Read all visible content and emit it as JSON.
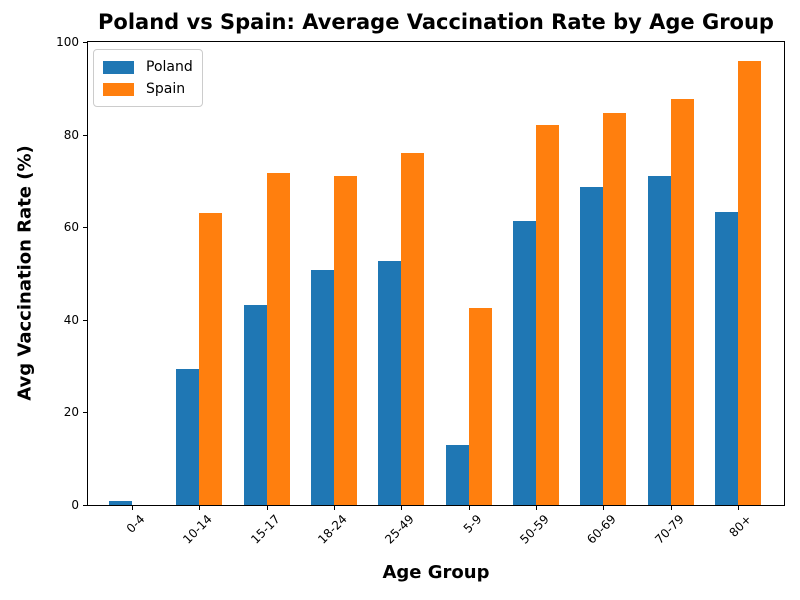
{
  "chart_data": {
    "type": "bar",
    "title": "Poland vs Spain: Average Vaccination Rate by Age Group",
    "xlabel": "Age Group",
    "ylabel": "Avg Vaccination Rate (%)",
    "categories": [
      "0-4",
      "10-14",
      "15-17",
      "18-24",
      "25-49",
      "5-9",
      "50-59",
      "60-69",
      "70-79",
      "80+"
    ],
    "series": [
      {
        "name": "Poland",
        "color": "#1f77b4",
        "values": [
          0.8,
          29.4,
          43.2,
          50.8,
          52.7,
          13.0,
          61.4,
          68.6,
          71.0,
          63.2
        ]
      },
      {
        "name": "Spain",
        "color": "#ff7f0e",
        "values": [
          0.0,
          63.0,
          71.8,
          71.0,
          76.0,
          42.5,
          82.0,
          84.6,
          87.7,
          96.0
        ]
      }
    ],
    "ylim": [
      0,
      100
    ],
    "y_ticks": [
      0,
      20,
      40,
      60,
      80,
      100
    ],
    "x_tick_rotation": 45,
    "grid": false,
    "legend_position": "upper-left",
    "axis_color": "#000000",
    "background_color": "#ffffff"
  }
}
